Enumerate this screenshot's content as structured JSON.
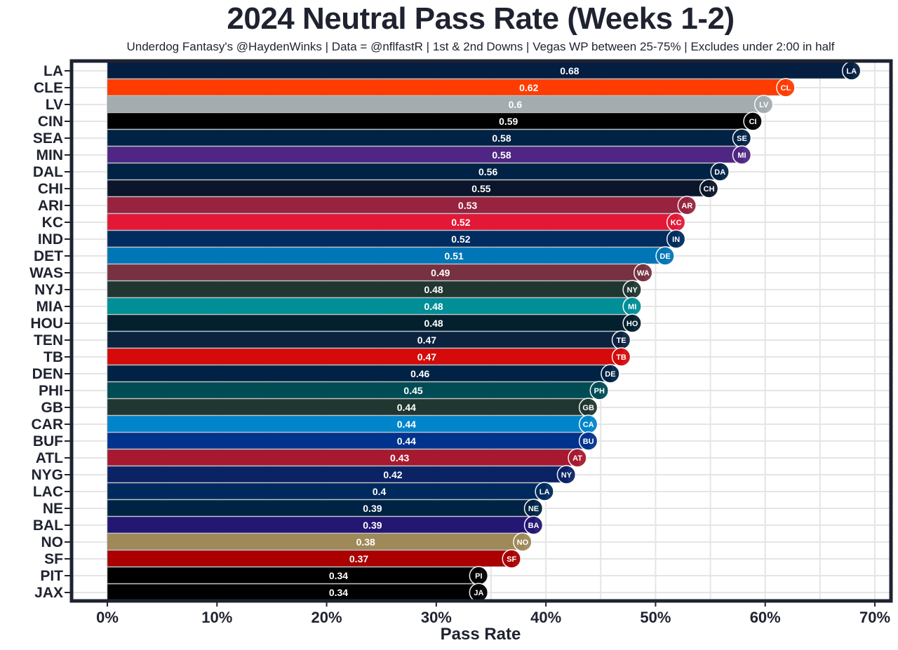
{
  "chart_data": {
    "type": "bar",
    "orientation": "horizontal",
    "title": "2024 Neutral Pass Rate (Weeks 1-2)",
    "subtitle": "Underdog Fantasy's @HaydenWinks | Data = @nflfastR | 1st & 2nd Downs | Vegas WP between 25-75% | Excludes under 2:00 in half",
    "xlabel": "Pass Rate",
    "ylabel": "",
    "xlim": [
      0,
      0.7
    ],
    "x_ticks": [
      0,
      0.1,
      0.2,
      0.3,
      0.4,
      0.5,
      0.6,
      0.7
    ],
    "x_tick_labels": [
      "0%",
      "10%",
      "20%",
      "30%",
      "40%",
      "50%",
      "60%",
      "70%"
    ],
    "grid": true,
    "legend": "none",
    "bars": [
      {
        "team": "LA",
        "value": 0.68,
        "label": "0.68",
        "color": "#041e42",
        "logo": "rams-logo-icon"
      },
      {
        "team": "CLE",
        "value": 0.62,
        "label": "0.62",
        "color": "#ff3c00",
        "logo": "browns-helmet-icon"
      },
      {
        "team": "LV",
        "value": 0.6,
        "label": "0.6",
        "color": "#a5acaf",
        "logo": "raiders-shield-icon"
      },
      {
        "team": "CIN",
        "value": 0.59,
        "label": "0.59",
        "color": "#000000",
        "logo": "bengals-b-icon"
      },
      {
        "team": "SEA",
        "value": 0.58,
        "label": "0.58",
        "color": "#002244",
        "logo": "seahawks-head-icon"
      },
      {
        "team": "MIN",
        "value": 0.58,
        "label": "0.58",
        "color": "#4f2683",
        "logo": "vikings-head-icon"
      },
      {
        "team": "DAL",
        "value": 0.56,
        "label": "0.56",
        "color": "#002244",
        "logo": "cowboys-star-icon"
      },
      {
        "team": "CHI",
        "value": 0.55,
        "label": "0.55",
        "color": "#0b162a",
        "logo": "bears-c-icon"
      },
      {
        "team": "ARI",
        "value": 0.53,
        "label": "0.53",
        "color": "#97233f",
        "logo": "cardinals-head-icon"
      },
      {
        "team": "KC",
        "value": 0.52,
        "label": "0.52",
        "color": "#e31837",
        "logo": "chiefs-arrowhead-icon"
      },
      {
        "team": "IND",
        "value": 0.52,
        "label": "0.52",
        "color": "#002c5f",
        "logo": "colts-horseshoe-icon"
      },
      {
        "team": "DET",
        "value": 0.51,
        "label": "0.51",
        "color": "#0076b6",
        "logo": "lions-icon"
      },
      {
        "team": "WAS",
        "value": 0.49,
        "label": "0.49",
        "color": "#773141",
        "logo": "commanders-w-icon"
      },
      {
        "team": "NYJ",
        "value": 0.48,
        "label": "0.48",
        "color": "#203731",
        "logo": "jets-oval-icon"
      },
      {
        "team": "MIA",
        "value": 0.48,
        "label": "0.48",
        "color": "#008e97",
        "logo": "dolphins-icon"
      },
      {
        "team": "HOU",
        "value": 0.48,
        "label": "0.48",
        "color": "#03202f",
        "logo": "texans-bull-icon"
      },
      {
        "team": "TEN",
        "value": 0.47,
        "label": "0.47",
        "color": "#0c2340",
        "logo": "titans-t-icon"
      },
      {
        "team": "TB",
        "value": 0.47,
        "label": "0.47",
        "color": "#d50a0a",
        "logo": "buccaneers-flag-icon"
      },
      {
        "team": "DEN",
        "value": 0.46,
        "label": "0.46",
        "color": "#002244",
        "logo": "broncos-head-icon"
      },
      {
        "team": "PHI",
        "value": 0.45,
        "label": "0.45",
        "color": "#004c54",
        "logo": "eagles-head-icon"
      },
      {
        "team": "GB",
        "value": 0.44,
        "label": "0.44",
        "color": "#203731",
        "logo": "packers-g-icon"
      },
      {
        "team": "CAR",
        "value": 0.44,
        "label": "0.44",
        "color": "#0085ca",
        "logo": "panthers-head-icon"
      },
      {
        "team": "BUF",
        "value": 0.44,
        "label": "0.44",
        "color": "#00338d",
        "logo": "bills-buffalo-icon"
      },
      {
        "team": "ATL",
        "value": 0.43,
        "label": "0.43",
        "color": "#a71930",
        "logo": "falcons-icon"
      },
      {
        "team": "NYG",
        "value": 0.42,
        "label": "0.42",
        "color": "#0b2265",
        "logo": "giants-ny-icon"
      },
      {
        "team": "LAC",
        "value": 0.4,
        "label": "0.4",
        "color": "#002a5e",
        "logo": "chargers-bolt-icon"
      },
      {
        "team": "NE",
        "value": 0.39,
        "label": "0.39",
        "color": "#002244",
        "logo": "patriots-icon"
      },
      {
        "team": "BAL",
        "value": 0.39,
        "label": "0.39",
        "color": "#241773",
        "logo": "ravens-head-icon"
      },
      {
        "team": "NO",
        "value": 0.38,
        "label": "0.38",
        "color": "#9f8958",
        "logo": "saints-fleur-icon"
      },
      {
        "team": "SF",
        "value": 0.37,
        "label": "0.37",
        "color": "#aa0000",
        "logo": "49ers-oval-icon"
      },
      {
        "team": "PIT",
        "value": 0.34,
        "label": "0.34",
        "color": "#000000",
        "logo": "steelers-icon"
      },
      {
        "team": "JAX",
        "value": 0.34,
        "label": "0.34",
        "color": "#000000",
        "logo": "jaguars-head-icon"
      }
    ],
    "categories": [
      "LA",
      "CLE",
      "LV",
      "CIN",
      "SEA",
      "MIN",
      "DAL",
      "CHI",
      "ARI",
      "KC",
      "IND",
      "DET",
      "WAS",
      "NYJ",
      "MIA",
      "HOU",
      "TEN",
      "TB",
      "DEN",
      "PHI",
      "GB",
      "CAR",
      "BUF",
      "ATL",
      "NYG",
      "LAC",
      "NE",
      "BAL",
      "NO",
      "SF",
      "PIT",
      "JAX"
    ],
    "values": [
      0.68,
      0.62,
      0.6,
      0.59,
      0.58,
      0.58,
      0.56,
      0.55,
      0.53,
      0.52,
      0.52,
      0.51,
      0.49,
      0.48,
      0.48,
      0.48,
      0.47,
      0.47,
      0.46,
      0.45,
      0.44,
      0.44,
      0.44,
      0.43,
      0.42,
      0.4,
      0.39,
      0.39,
      0.38,
      0.37,
      0.34,
      0.34
    ]
  },
  "colors": {
    "frame": "#1f2330",
    "grid": "#e5e5e5",
    "text": "#1f2330",
    "value_label": "#ffffff"
  }
}
